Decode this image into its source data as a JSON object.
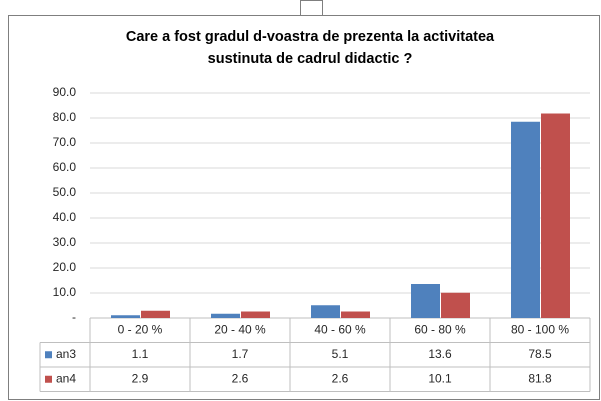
{
  "chart_data": {
    "type": "bar",
    "title": [
      "Care a fost gradul d-voastra de prezenta la activitatea",
      "sustinuta de cadrul didactic ?"
    ],
    "categories": [
      "0 - 20 %",
      "20 - 40 %",
      "40 - 60 %",
      "60 - 80 %",
      "80 - 100 %"
    ],
    "series": [
      {
        "name": "an3",
        "color": "#4f81bd",
        "values": [
          1.1,
          1.7,
          5.1,
          13.6,
          78.5
        ]
      },
      {
        "name": "an4",
        "color": "#c0504d",
        "values": [
          2.9,
          2.6,
          2.6,
          10.1,
          81.8
        ]
      }
    ],
    "ylim": [
      0,
      90
    ],
    "yticks": [
      {
        "value": 0,
        "label": "-"
      },
      {
        "value": 10,
        "label": "10.0"
      },
      {
        "value": 20,
        "label": "20.0"
      },
      {
        "value": 30,
        "label": "30.0"
      },
      {
        "value": 40,
        "label": "40.0"
      },
      {
        "value": 50,
        "label": "50.0"
      },
      {
        "value": 60,
        "label": "60.0"
      },
      {
        "value": 70,
        "label": "70.0"
      },
      {
        "value": 80,
        "label": "80.0"
      },
      {
        "value": 90,
        "label": "90.0"
      }
    ],
    "grid": true
  }
}
